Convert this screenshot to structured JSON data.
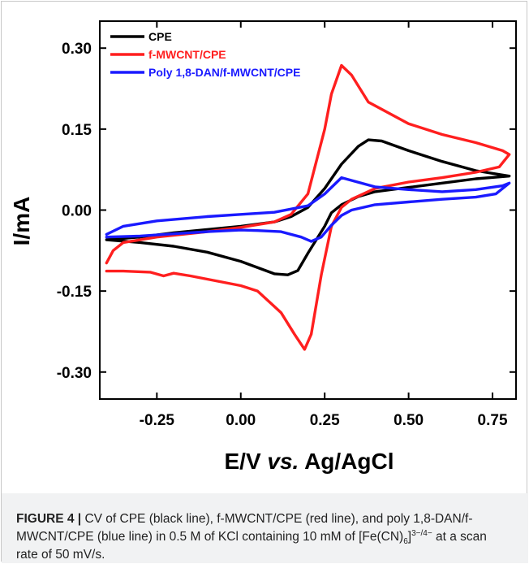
{
  "chart_data": {
    "type": "line",
    "title": "",
    "xlabel_main": "E/V ",
    "xlabel_italic": "vs.",
    "xlabel_tail": " Ag/AgCl",
    "ylabel": "I/mA",
    "xlim": [
      -0.42,
      0.82
    ],
    "ylim": [
      -0.35,
      0.35
    ],
    "xticks": [
      -0.25,
      0.0,
      0.25,
      0.5,
      0.75
    ],
    "xtick_labels": [
      "-0.25",
      "0.00",
      "0.25",
      "0.50",
      "0.75"
    ],
    "yticks": [
      -0.3,
      -0.15,
      0.0,
      0.15,
      0.3
    ],
    "ytick_labels": [
      "-0.30",
      "-0.15",
      "0.00",
      "0.15",
      "0.30"
    ],
    "grid": false,
    "legend_position": "top-left",
    "series": [
      {
        "name": "CPE",
        "color": "#000000",
        "forward": [
          [
            -0.4,
            -0.055
          ],
          [
            -0.3,
            -0.05
          ],
          [
            -0.2,
            -0.042
          ],
          [
            -0.1,
            -0.036
          ],
          [
            0.0,
            -0.03
          ],
          [
            0.1,
            -0.022
          ],
          [
            0.15,
            -0.012
          ],
          [
            0.2,
            0.005
          ],
          [
            0.25,
            0.04
          ],
          [
            0.3,
            0.085
          ],
          [
            0.35,
            0.118
          ],
          [
            0.38,
            0.13
          ],
          [
            0.42,
            0.128
          ],
          [
            0.5,
            0.11
          ],
          [
            0.6,
            0.09
          ],
          [
            0.7,
            0.073
          ],
          [
            0.8,
            0.063
          ]
        ],
        "reverse": [
          [
            0.8,
            0.063
          ],
          [
            0.7,
            0.058
          ],
          [
            0.6,
            0.05
          ],
          [
            0.5,
            0.042
          ],
          [
            0.4,
            0.034
          ],
          [
            0.35,
            0.025
          ],
          [
            0.3,
            0.01
          ],
          [
            0.27,
            -0.005
          ],
          [
            0.25,
            -0.03
          ],
          [
            0.2,
            -0.08
          ],
          [
            0.17,
            -0.112
          ],
          [
            0.14,
            -0.12
          ],
          [
            0.1,
            -0.118
          ],
          [
            0.0,
            -0.095
          ],
          [
            -0.1,
            -0.078
          ],
          [
            -0.2,
            -0.067
          ],
          [
            -0.3,
            -0.06
          ],
          [
            -0.4,
            -0.055
          ]
        ]
      },
      {
        "name": "f-MWCNT/CPE",
        "color": "#ff1f1f",
        "forward": [
          [
            -0.4,
            -0.098
          ],
          [
            -0.38,
            -0.075
          ],
          [
            -0.35,
            -0.06
          ],
          [
            -0.25,
            -0.05
          ],
          [
            -0.1,
            -0.04
          ],
          [
            0.0,
            -0.032
          ],
          [
            0.1,
            -0.022
          ],
          [
            0.15,
            -0.008
          ],
          [
            0.2,
            0.03
          ],
          [
            0.25,
            0.15
          ],
          [
            0.27,
            0.215
          ],
          [
            0.3,
            0.268
          ],
          [
            0.33,
            0.25
          ],
          [
            0.38,
            0.2
          ],
          [
            0.5,
            0.16
          ],
          [
            0.6,
            0.14
          ],
          [
            0.7,
            0.125
          ],
          [
            0.78,
            0.11
          ],
          [
            0.8,
            0.103
          ]
        ],
        "reverse": [
          [
            0.8,
            0.103
          ],
          [
            0.77,
            0.08
          ],
          [
            0.7,
            0.07
          ],
          [
            0.6,
            0.06
          ],
          [
            0.5,
            0.052
          ],
          [
            0.4,
            0.04
          ],
          [
            0.33,
            0.02
          ],
          [
            0.3,
            0.005
          ],
          [
            0.27,
            -0.03
          ],
          [
            0.24,
            -0.12
          ],
          [
            0.21,
            -0.23
          ],
          [
            0.19,
            -0.258
          ],
          [
            0.16,
            -0.23
          ],
          [
            0.12,
            -0.19
          ],
          [
            0.05,
            -0.15
          ],
          [
            0.0,
            -0.14
          ],
          [
            -0.1,
            -0.128
          ],
          [
            -0.15,
            -0.122
          ],
          [
            -0.2,
            -0.117
          ],
          [
            -0.23,
            -0.122
          ],
          [
            -0.27,
            -0.115
          ],
          [
            -0.35,
            -0.113
          ],
          [
            -0.4,
            -0.113
          ]
        ]
      },
      {
        "name": "Poly 1,8-DAN/f-MWCNT/CPE",
        "color": "#1a1aff",
        "forward": [
          [
            -0.4,
            -0.045
          ],
          [
            -0.35,
            -0.03
          ],
          [
            -0.25,
            -0.02
          ],
          [
            -0.1,
            -0.012
          ],
          [
            0.0,
            -0.008
          ],
          [
            0.1,
            -0.004
          ],
          [
            0.2,
            0.008
          ],
          [
            0.25,
            0.03
          ],
          [
            0.3,
            0.06
          ],
          [
            0.33,
            0.055
          ],
          [
            0.4,
            0.043
          ],
          [
            0.5,
            0.038
          ],
          [
            0.6,
            0.034
          ],
          [
            0.7,
            0.038
          ],
          [
            0.78,
            0.045
          ],
          [
            0.8,
            0.05
          ]
        ],
        "reverse": [
          [
            0.8,
            0.05
          ],
          [
            0.76,
            0.03
          ],
          [
            0.7,
            0.024
          ],
          [
            0.6,
            0.02
          ],
          [
            0.5,
            0.015
          ],
          [
            0.4,
            0.01
          ],
          [
            0.33,
            0.0
          ],
          [
            0.3,
            -0.01
          ],
          [
            0.27,
            -0.028
          ],
          [
            0.24,
            -0.05
          ],
          [
            0.21,
            -0.058
          ],
          [
            0.18,
            -0.05
          ],
          [
            0.12,
            -0.04
          ],
          [
            0.05,
            -0.038
          ],
          [
            0.0,
            -0.037
          ],
          [
            -0.1,
            -0.04
          ],
          [
            -0.2,
            -0.044
          ],
          [
            -0.3,
            -0.048
          ],
          [
            -0.4,
            -0.05
          ]
        ]
      }
    ]
  },
  "caption": {
    "label": "FIGURE 4 |",
    "text_1": " CV of CPE (black line), f-MWCNT/CPE (red line), and poly 1,8-DAN/f-MWCNT/CPE (blue line) in 0.5 M of KCl containing 10 mM of [Fe(CN)",
    "sub": "6",
    "text_2": "]",
    "sup": "3−/4−",
    "text_3": " at a scan rate of 50 mV/s."
  }
}
